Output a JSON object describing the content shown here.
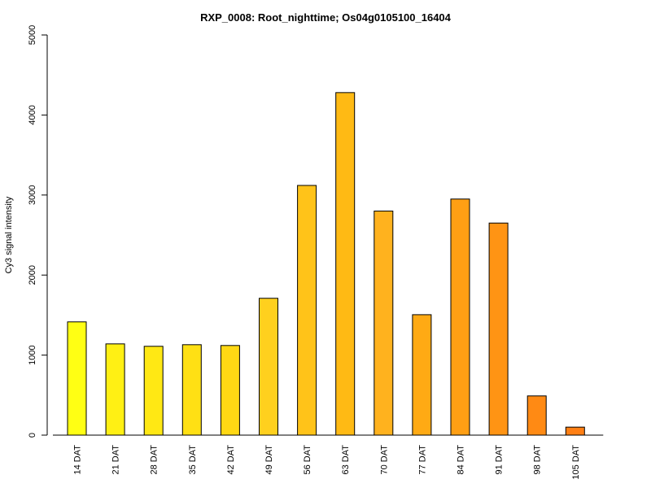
{
  "chart_data": {
    "type": "bar",
    "title": "RXP_0008: Root_nighttime; Os04g0105100_16404",
    "xlabel": "",
    "ylabel": "Cy3 signal intensity",
    "ylim": [
      0,
      5000
    ],
    "yticks": [
      0,
      1000,
      2000,
      3000,
      4000,
      5000
    ],
    "categories": [
      "14 DAT",
      "21 DAT",
      "28 DAT",
      "35 DAT",
      "42 DAT",
      "49 DAT",
      "56 DAT",
      "63 DAT",
      "70 DAT",
      "77 DAT",
      "84 DAT",
      "91 DAT",
      "98 DAT",
      "105 DAT"
    ],
    "values": [
      1415,
      1140,
      1110,
      1130,
      1120,
      1710,
      3120,
      4280,
      2800,
      1505,
      2950,
      2650,
      490,
      100
    ],
    "colors": [
      "#FFFF14",
      "#FFF014",
      "#FFE814",
      "#FFE014",
      "#FFD814",
      "#FFD01E",
      "#FFC319",
      "#FFBA14",
      "#FFB21E",
      "#FFAA14",
      "#FF9F14",
      "#FF9414",
      "#FF8A14",
      "#FF7F14"
    ],
    "grid": false,
    "legend": "none"
  }
}
